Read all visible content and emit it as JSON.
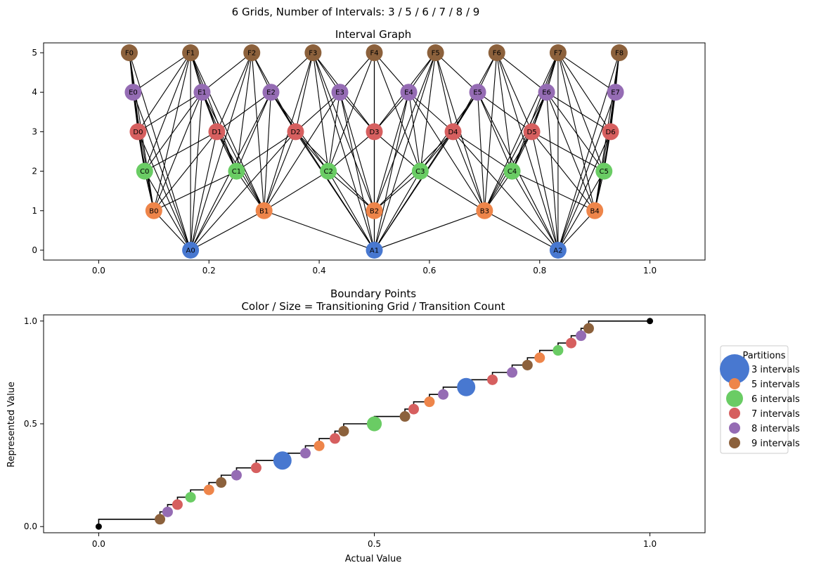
{
  "suptitle": "6 Grids, Number of Intervals: 3 / 5 / 6 / 7 / 8 / 9",
  "colors": [
    "#4878d0",
    "#ee854a",
    "#6acc64",
    "#d65f5f",
    "#956cb4",
    "#8c613c"
  ],
  "chart_data": [
    {
      "type": "network",
      "title": "Interval Graph",
      "xlim": [
        -0.1,
        1.1
      ],
      "ylim": [
        -0.25,
        5.25
      ],
      "xticks": [
        "0.0",
        "0.2",
        "0.4",
        "0.6",
        "0.8",
        "1.0"
      ],
      "yticks": [
        "0",
        "1",
        "2",
        "3",
        "4",
        "5"
      ],
      "levels": [
        {
          "letter": "A",
          "intervals": 3
        },
        {
          "letter": "B",
          "intervals": 5
        },
        {
          "letter": "C",
          "intervals": 6
        },
        {
          "letter": "D",
          "intervals": 7
        },
        {
          "letter": "E",
          "intervals": 8
        },
        {
          "letter": "F",
          "intervals": 9
        }
      ],
      "edges": "between every pair of nodes on different levels whose intervals overlap"
    },
    {
      "type": "scatter",
      "title_line1": "Boundary Points",
      "title_line2": "Color / Size = Transitioning Grid / Transition Count",
      "xlabel": "Actual Value",
      "ylabel": "Represented Value",
      "xlim": [
        -0.1,
        1.1
      ],
      "ylim": [
        -0.03,
        1.03
      ],
      "xticks": [
        "0.0",
        "0.5",
        "1.0"
      ],
      "yticks": [
        "0.0",
        "0.5",
        "1.0"
      ],
      "endpoints": [
        [
          0,
          0
        ],
        [
          1,
          1
        ]
      ],
      "legend_title": "Partitions",
      "legend_position": "center right, outside",
      "series": [
        {
          "name": "3 intervals",
          "intervals": 3
        },
        {
          "name": "5 intervals",
          "intervals": 5
        },
        {
          "name": "6 intervals",
          "intervals": 6
        },
        {
          "name": "7 intervals",
          "intervals": 7
        },
        {
          "name": "8 intervals",
          "intervals": 8
        },
        {
          "name": "9 intervals",
          "intervals": 9
        }
      ]
    }
  ]
}
